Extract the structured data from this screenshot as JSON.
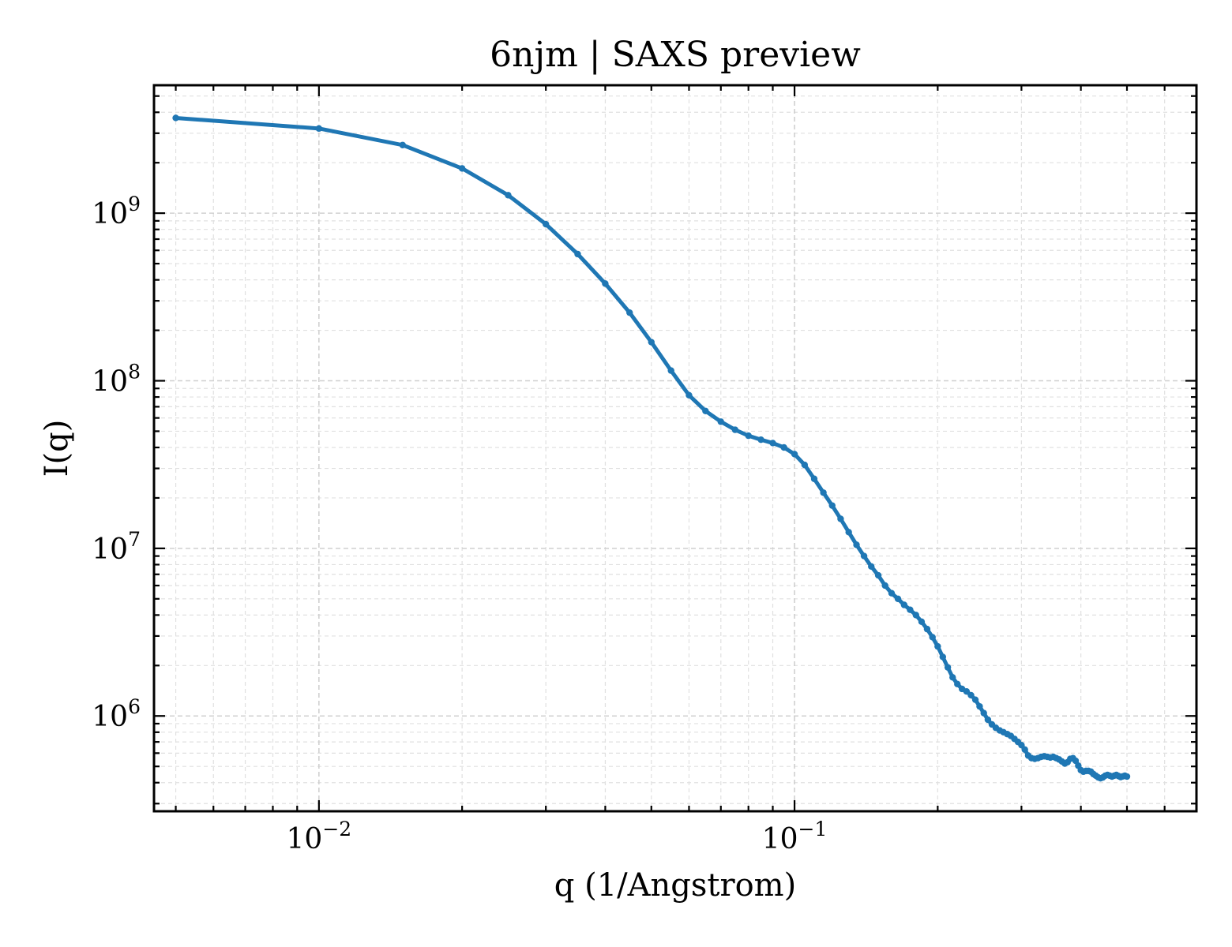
{
  "chart_data": {
    "type": "line",
    "title": "6njm | SAXS preview",
    "xlabel": "q (1/Angstrom)",
    "ylabel": "I(q)",
    "xscale": "log",
    "yscale": "log",
    "xlim": [
      0.0045,
      0.7
    ],
    "ylim": [
      270000,
      5800000000
    ],
    "grid": true,
    "legend": "none",
    "colors": {
      "series": "#1f77b4"
    },
    "xticks": [
      {
        "value": 0.01,
        "base": "10",
        "exp": "−2"
      },
      {
        "value": 0.1,
        "base": "10",
        "exp": "−1"
      }
    ],
    "yticks": [
      {
        "value": 1000000,
        "base": "10",
        "exp": "6"
      },
      {
        "value": 10000000,
        "base": "10",
        "exp": "7"
      },
      {
        "value": 100000000,
        "base": "10",
        "exp": "8"
      },
      {
        "value": 1000000000,
        "base": "10",
        "exp": "9"
      }
    ],
    "series": [
      {
        "x": [
          0.005,
          0.01,
          0.015,
          0.02,
          0.025,
          0.03,
          0.035,
          0.04,
          0.045,
          0.05,
          0.055,
          0.06,
          0.065,
          0.07,
          0.075,
          0.08,
          0.085,
          0.09,
          0.095,
          0.1,
          0.105,
          0.11,
          0.115,
          0.12,
          0.125,
          0.13,
          0.135,
          0.14,
          0.145,
          0.15,
          0.155,
          0.16,
          0.165,
          0.17,
          0.175,
          0.18,
          0.185,
          0.19,
          0.195,
          0.2,
          0.205,
          0.21,
          0.215,
          0.22,
          0.225,
          0.23,
          0.235,
          0.24,
          0.245,
          0.25,
          0.255,
          0.26,
          0.265,
          0.27,
          0.275,
          0.28,
          0.285,
          0.29,
          0.295,
          0.3,
          0.305,
          0.31,
          0.315,
          0.32,
          0.325,
          0.33,
          0.335,
          0.34,
          0.345,
          0.35,
          0.355,
          0.36,
          0.365,
          0.37,
          0.375,
          0.38,
          0.385,
          0.39,
          0.395,
          0.4,
          0.405,
          0.41,
          0.415,
          0.42,
          0.425,
          0.43,
          0.435,
          0.44,
          0.445,
          0.45,
          0.455,
          0.46,
          0.465,
          0.47,
          0.475,
          0.48,
          0.485,
          0.49,
          0.495,
          0.5
        ],
        "y": [
          3700000000,
          3200000000,
          2550000000,
          1850000000,
          1280000000,
          860000000,
          570000000,
          380000000,
          255000000,
          170000000,
          115000000,
          82000000,
          66000000,
          57000000,
          51000000,
          47000000,
          44500000,
          42500000,
          40000000,
          36500000,
          31500000,
          26000000,
          21500000,
          18000000,
          15000000,
          12500000,
          10500000,
          9000000,
          7800000,
          6900000,
          6000000,
          5400000,
          5000000,
          4600000,
          4300000,
          4000000,
          3650000,
          3300000,
          2950000,
          2600000,
          2250000,
          1950000,
          1700000,
          1550000,
          1450000,
          1400000,
          1330000,
          1250000,
          1140000,
          1040000,
          950000,
          890000,
          850000,
          820000,
          800000,
          780000,
          760000,
          730000,
          700000,
          670000,
          630000,
          580000,
          560000,
          555000,
          560000,
          570000,
          575000,
          570000,
          565000,
          570000,
          560000,
          550000,
          535000,
          520000,
          530000,
          555000,
          560000,
          540000,
          505000,
          475000,
          465000,
          470000,
          470000,
          465000,
          450000,
          440000,
          430000,
          425000,
          430000,
          440000,
          445000,
          440000,
          435000,
          440000,
          445000,
          438000,
          432000,
          436000,
          440000,
          435000
        ]
      }
    ]
  }
}
